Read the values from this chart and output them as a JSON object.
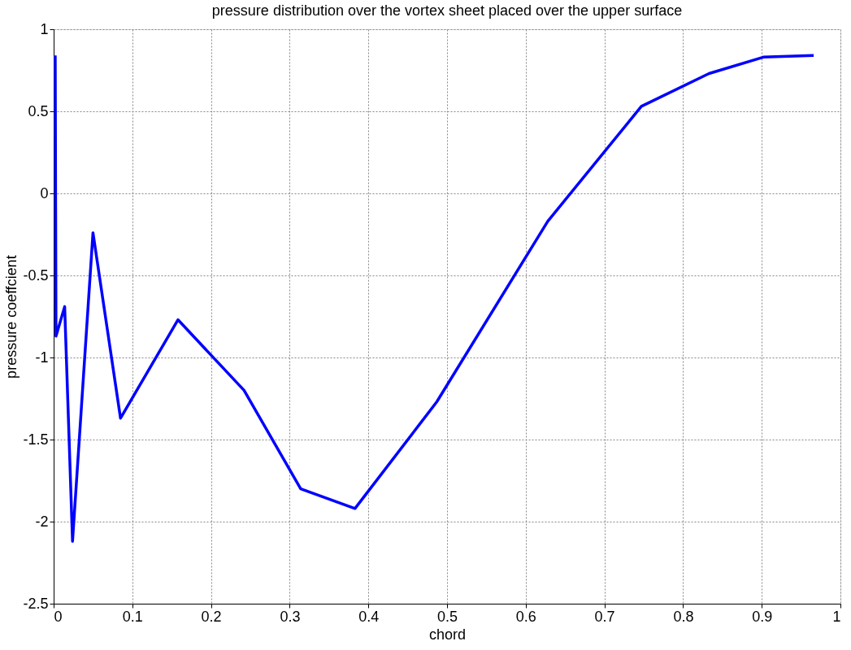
{
  "chart_data": {
    "type": "line",
    "title": "pressure distribution over the vortex sheet placed over the upper surface",
    "xlabel": "chord",
    "ylabel": "pressure coeffcient",
    "x": [
      0.002,
      0.003,
      0.014,
      0.024,
      0.05,
      0.085,
      0.158,
      0.242,
      0.314,
      0.383,
      0.487,
      0.628,
      0.747,
      0.833,
      0.902,
      0.966
    ],
    "series": [
      {
        "color": "#0000ff",
        "values": [
          0.84,
          -0.87,
          -0.69,
          -2.12,
          -0.24,
          -1.37,
          -0.77,
          -1.2,
          -1.8,
          -1.92,
          -1.27,
          -0.17,
          0.53,
          0.73,
          0.83,
          0.84
        ]
      }
    ],
    "xlim": [
      0,
      1
    ],
    "xticks": [
      0,
      0.1,
      0.2,
      0.3,
      0.4,
      0.5,
      0.6,
      0.7,
      0.8,
      0.9,
      1
    ],
    "ylim": [
      -2.5,
      1
    ],
    "yticks": [
      -2.5,
      -2,
      -1.5,
      -1,
      -0.5,
      0,
      0.5,
      1
    ],
    "grid": true,
    "marker": "none",
    "line_style": "solid"
  }
}
